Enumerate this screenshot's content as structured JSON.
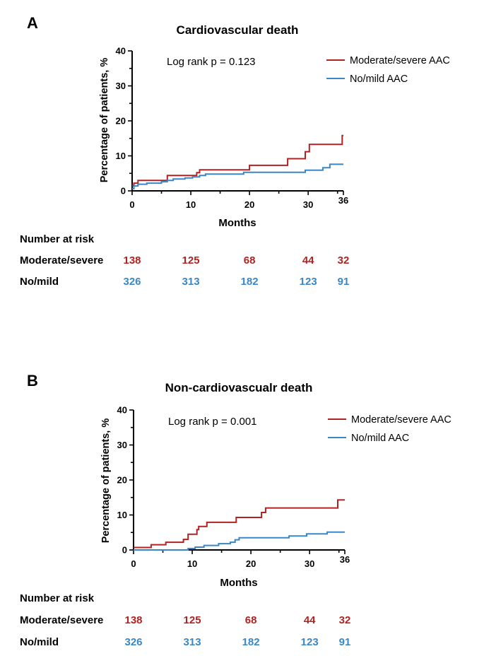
{
  "chart_data": [
    {
      "type": "line",
      "panel": "A",
      "title": "Cardiovascular death",
      "xlabel": "Months",
      "ylabel": "Percentage of patients, %",
      "xlim": [
        0,
        36
      ],
      "ylim": [
        0,
        40
      ],
      "xticks": [
        0,
        10,
        20,
        30,
        36
      ],
      "yticks": [
        0,
        10,
        20,
        30,
        40
      ],
      "annotation": "Log rank p = 0.123",
      "legend_position": "top-right",
      "series": [
        {
          "name": "Moderate/severe AAC",
          "color": "#b22222",
          "step": [
            [
              0,
              1.5
            ],
            [
              0.3,
              2.2
            ],
            [
              1,
              3.0
            ],
            [
              6,
              4.4
            ],
            [
              11,
              5.2
            ],
            [
              11.5,
              6.0
            ],
            [
              20,
              7.3
            ],
            [
              26.5,
              9.2
            ],
            [
              29.5,
              11.2
            ],
            [
              30.2,
              13.3
            ],
            [
              35.8,
              15.8
            ],
            [
              36,
              15.8
            ]
          ]
        },
        {
          "name": "No/mild AAC",
          "color": "#3a87c8",
          "step": [
            [
              0,
              0.6
            ],
            [
              0.3,
              1.4
            ],
            [
              1,
              1.9
            ],
            [
              2.5,
              2.2
            ],
            [
              5,
              2.6
            ],
            [
              6,
              3.0
            ],
            [
              7,
              3.4
            ],
            [
              9,
              3.7
            ],
            [
              10.3,
              4.0
            ],
            [
              11.5,
              4.4
            ],
            [
              12.5,
              4.8
            ],
            [
              19,
              5.3
            ],
            [
              29.5,
              5.9
            ],
            [
              32.5,
              6.6
            ],
            [
              33.7,
              7.6
            ],
            [
              36,
              7.6
            ]
          ]
        }
      ],
      "risk_table": {
        "heading": "Number at risk",
        "rows": [
          {
            "label": "Moderate/severe",
            "color": "#b22222",
            "values": [
              "138",
              "125",
              "68",
              "44",
              "32"
            ]
          },
          {
            "label": "No/mild",
            "color": "#3a87c8",
            "values": [
              "326",
              "313",
              "182",
              "123",
              "91"
            ]
          }
        ]
      }
    },
    {
      "type": "line",
      "panel": "B",
      "title": "Non-cardiovascualr death",
      "xlabel": "Months",
      "ylabel": "Percentage of patients, %",
      "xlim": [
        0,
        36
      ],
      "ylim": [
        0,
        40
      ],
      "xticks": [
        0,
        10,
        20,
        30,
        36
      ],
      "yticks": [
        0,
        10,
        20,
        30,
        40
      ],
      "annotation": "Log rank p = 0.001",
      "legend_position": "top-right",
      "series": [
        {
          "name": "Moderate/severe AAC",
          "color": "#b22222",
          "step": [
            [
              0,
              0.7
            ],
            [
              3,
              1.5
            ],
            [
              5.5,
              2.2
            ],
            [
              8.5,
              3.0
            ],
            [
              9.3,
              4.5
            ],
            [
              10.8,
              5.8
            ],
            [
              11.1,
              6.7
            ],
            [
              12.5,
              7.9
            ],
            [
              17.5,
              9.3
            ],
            [
              21.8,
              10.7
            ],
            [
              22.5,
              12.0
            ],
            [
              34.8,
              14.3
            ],
            [
              36,
              14.3
            ]
          ]
        },
        {
          "name": "No/mild AAC",
          "color": "#3a87c8",
          "step": [
            [
              0,
              0
            ],
            [
              9.3,
              0.4
            ],
            [
              10.5,
              0.8
            ],
            [
              12,
              1.3
            ],
            [
              14.5,
              1.8
            ],
            [
              16.5,
              2.2
            ],
            [
              17.3,
              2.9
            ],
            [
              18,
              3.5
            ],
            [
              26.5,
              4.0
            ],
            [
              29.5,
              4.6
            ],
            [
              33,
              5.1
            ],
            [
              36,
              5.1
            ]
          ]
        }
      ],
      "risk_table": {
        "heading": "Number at risk",
        "rows": [
          {
            "label": "Moderate/severe",
            "color": "#b22222",
            "values": [
              "138",
              "125",
              "68",
              "44",
              "32"
            ]
          },
          {
            "label": "No/mild",
            "color": "#3a87c8",
            "values": [
              "326",
              "313",
              "182",
              "123",
              "91"
            ]
          }
        ]
      }
    }
  ]
}
